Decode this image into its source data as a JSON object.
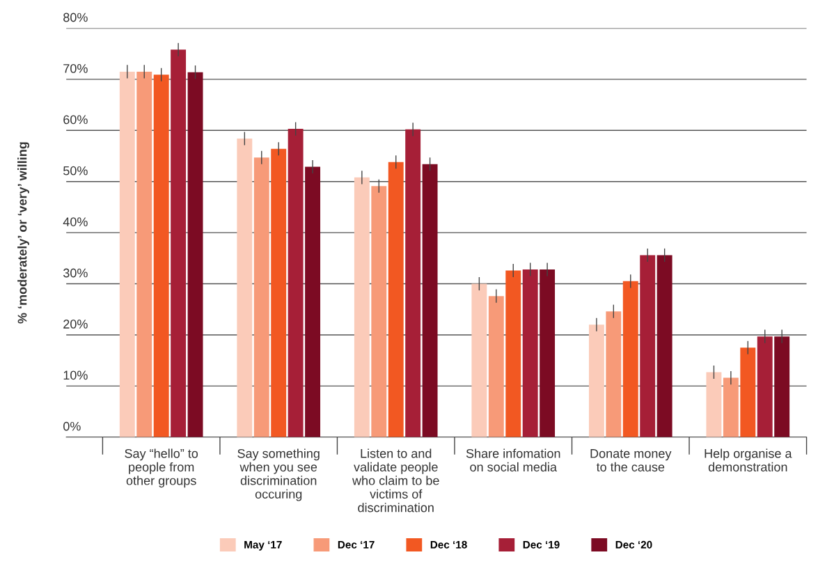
{
  "chart_data": {
    "type": "bar",
    "ylabel": "% ‘moderately’ or ‘very’ willing",
    "categories": [
      "Say “hello” to\npeople from\nother groups",
      "Say something\nwhen you see\ndiscrimination\noccuring",
      "Listen to and\nvalidate people\nwho claim to be\nvictims of\ndiscrimination",
      "Share infomation\non social media",
      "Donate money\nto the cause",
      "Help organise a\ndemonstration"
    ],
    "series": [
      {
        "name": "May ‘17",
        "color": "#fbcbb9",
        "values": [
          71.5,
          58.4,
          50.8,
          30.0,
          22.0,
          12.7
        ],
        "errors": [
          1.3,
          1.3,
          1.3,
          1.3,
          1.3,
          1.3
        ]
      },
      {
        "name": "Dec ‘17",
        "color": "#f79a78",
        "values": [
          71.5,
          54.7,
          49.1,
          27.6,
          24.6,
          11.6
        ],
        "errors": [
          1.3,
          1.3,
          1.3,
          1.3,
          1.3,
          1.3
        ]
      },
      {
        "name": "Dec ‘18",
        "color": "#f25822",
        "values": [
          70.9,
          56.4,
          53.8,
          32.6,
          30.5,
          17.5
        ],
        "errors": [
          1.3,
          1.3,
          1.3,
          1.3,
          1.3,
          1.3
        ]
      },
      {
        "name": "Dec ‘19",
        "color": "#a61f37",
        "values": [
          75.8,
          60.3,
          60.2,
          32.8,
          35.6,
          19.7
        ],
        "errors": [
          1.3,
          1.3,
          1.3,
          1.3,
          1.3,
          1.3
        ]
      },
      {
        "name": "Dec ‘20",
        "color": "#7c0b23",
        "values": [
          71.4,
          52.9,
          53.4,
          32.8,
          35.6,
          19.7
        ],
        "errors": [
          1.3,
          1.3,
          1.3,
          1.3,
          1.3,
          1.3
        ]
      }
    ],
    "ylim": [
      0,
      80
    ],
    "yticks": [
      {
        "value": 0,
        "label": "0%"
      },
      {
        "value": 10,
        "label": "10%"
      },
      {
        "value": 20,
        "label": "20%"
      },
      {
        "value": 30,
        "label": "30%"
      },
      {
        "value": 40,
        "label": "40%"
      },
      {
        "value": 50,
        "label": "50%"
      },
      {
        "value": 60,
        "label": "60%"
      },
      {
        "value": 70,
        "label": "70%"
      },
      {
        "value": 80,
        "label": "80%"
      }
    ],
    "grid": "y",
    "legend": "bottom"
  }
}
